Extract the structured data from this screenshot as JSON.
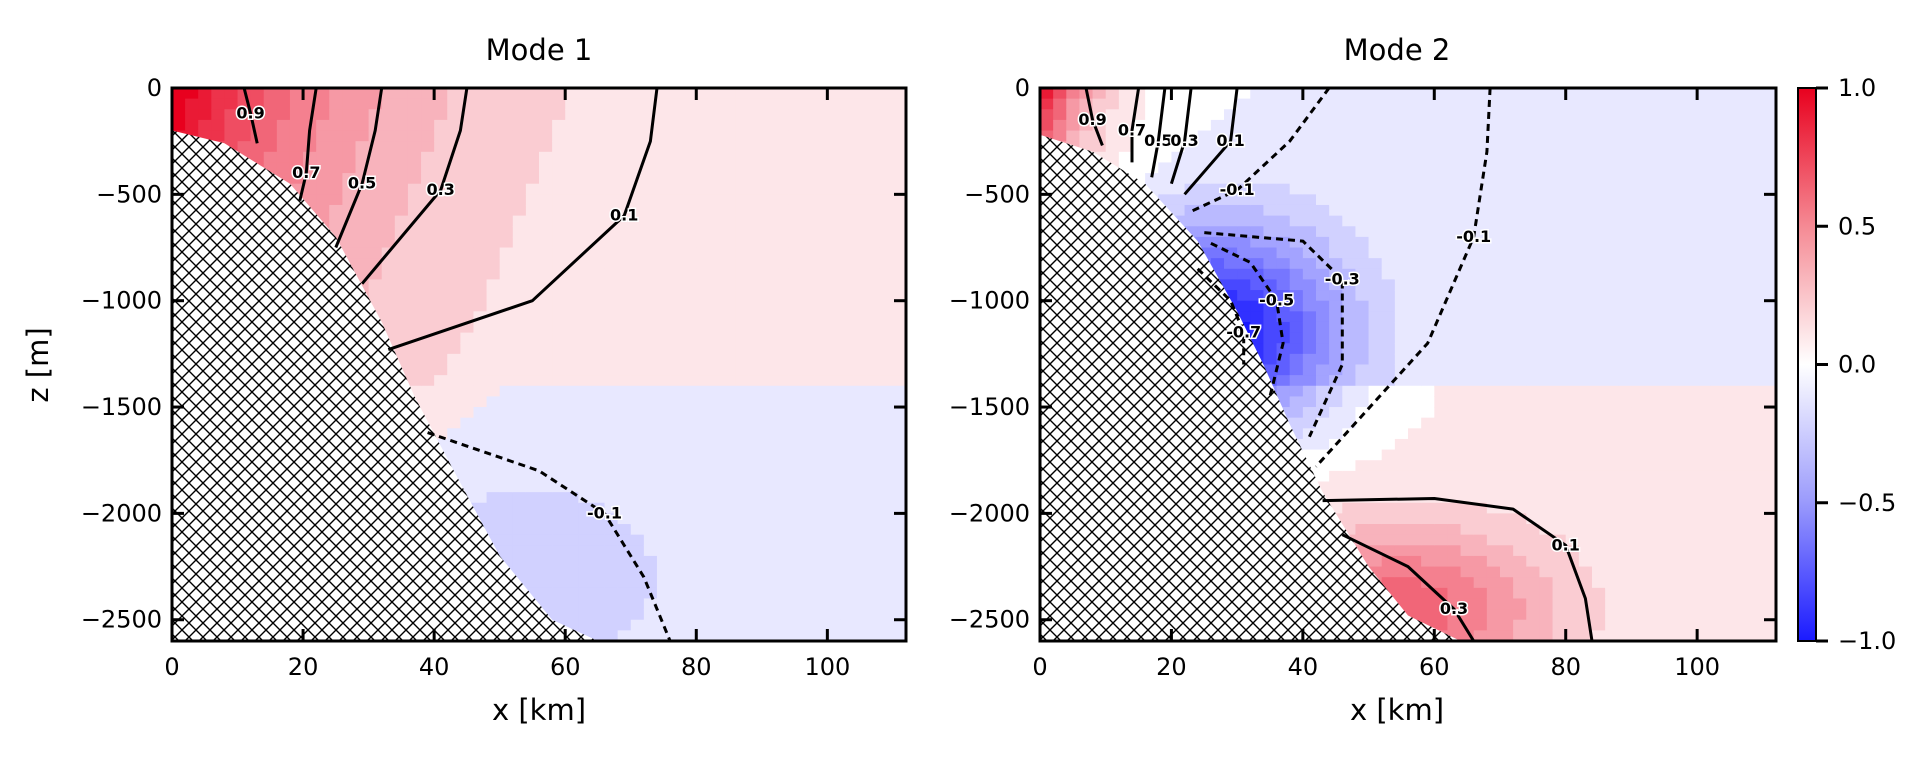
{
  "chart_data": [
    {
      "type": "heatmap",
      "title": "Mode 1",
      "xlabel": "x [km]",
      "ylabel": "z [m]",
      "xlim": [
        0,
        112
      ],
      "ylim": [
        -2600,
        0
      ],
      "x_ticks": [
        "0",
        "20",
        "40",
        "60",
        "80",
        "100"
      ],
      "y_ticks": [
        "0",
        "−500",
        "−1000",
        "−1500",
        "−2000",
        "−2500"
      ],
      "y_tick_values": [
        0,
        -500,
        -1000,
        -1500,
        -2000,
        -2500
      ],
      "x_tick_values": [
        0,
        20,
        40,
        60,
        80,
        100
      ],
      "contours": [
        {
          "level": 0.9,
          "label": "0.9",
          "style": "solid",
          "points": [
            [
              11,
              0
            ],
            [
              12,
              -120
            ],
            [
              13,
              -260
            ]
          ]
        },
        {
          "level": 0.7,
          "label": "0.7",
          "style": "solid",
          "points": [
            [
              22,
              0
            ],
            [
              21,
              -200
            ],
            [
              20.5,
              -400
            ],
            [
              19.5,
              -530
            ]
          ]
        },
        {
          "level": 0.5,
          "label": "0.5",
          "style": "solid",
          "points": [
            [
              32,
              0
            ],
            [
              31,
              -200
            ],
            [
              29,
              -450
            ],
            [
              25,
              -750
            ]
          ]
        },
        {
          "level": 0.3,
          "label": "0.3",
          "style": "solid",
          "points": [
            [
              45,
              0
            ],
            [
              44,
              -200
            ],
            [
              41,
              -480
            ],
            [
              29,
              -920
            ]
          ]
        },
        {
          "level": 0.1,
          "label": "0.1",
          "style": "solid",
          "points": [
            [
              74,
              0
            ],
            [
              73,
              -250
            ],
            [
              69,
              -600
            ],
            [
              55,
              -1000
            ],
            [
              33,
              -1230
            ]
          ]
        },
        {
          "level": -0.1,
          "label": "-0.1",
          "style": "dashed",
          "points": [
            [
              39,
              -1620
            ],
            [
              56,
              -1800
            ],
            [
              66,
              -2000
            ],
            [
              72,
              -2300
            ],
            [
              76,
              -2600
            ]
          ]
        }
      ],
      "bathymetry": [
        [
          0,
          -200
        ],
        [
          8,
          -260
        ],
        [
          18,
          -450
        ],
        [
          25,
          -700
        ],
        [
          32,
          -1100
        ],
        [
          37,
          -1450
        ],
        [
          43,
          -1800
        ],
        [
          50,
          -2200
        ],
        [
          58,
          -2500
        ],
        [
          65,
          -2600
        ]
      ]
    },
    {
      "type": "heatmap",
      "title": "Mode 2",
      "xlabel": "x [km]",
      "ylabel": "",
      "xlim": [
        0,
        112
      ],
      "ylim": [
        -2600,
        0
      ],
      "x_ticks": [
        "0",
        "20",
        "40",
        "60",
        "80",
        "100"
      ],
      "y_ticks": [
        "0",
        "−500",
        "−1000",
        "−1500",
        "−2000",
        "−2500"
      ],
      "y_tick_values": [
        0,
        -500,
        -1000,
        -1500,
        -2000,
        -2500
      ],
      "x_tick_values": [
        0,
        20,
        40,
        60,
        80,
        100
      ],
      "contours": [
        {
          "level": 0.9,
          "label": "0.9",
          "style": "solid",
          "points": [
            [
              7,
              0
            ],
            [
              8,
              -150
            ],
            [
              9.5,
              -270
            ]
          ]
        },
        {
          "level": 0.7,
          "label": "0.7",
          "style": "solid",
          "points": [
            [
              15,
              0
            ],
            [
              14,
              -200
            ],
            [
              14,
              -350
            ]
          ]
        },
        {
          "level": 0.5,
          "label": "0.5",
          "style": "solid",
          "points": [
            [
              19,
              0
            ],
            [
              18,
              -250
            ],
            [
              17,
              -420
            ]
          ]
        },
        {
          "level": 0.3,
          "label": "0.3",
          "style": "solid",
          "points": [
            [
              23,
              0
            ],
            [
              22,
              -250
            ],
            [
              20,
              -450
            ]
          ]
        },
        {
          "level": 0.1,
          "label": "0.1",
          "style": "solid",
          "points": [
            [
              30,
              0
            ],
            [
              29,
              -250
            ],
            [
              22,
              -500
            ]
          ]
        },
        {
          "level": -0.1,
          "label": "-0.1",
          "style": "dashed",
          "points": [
            [
              44,
              0
            ],
            [
              38,
              -250
            ],
            [
              30,
              -480
            ],
            [
              23,
              -580
            ]
          ]
        },
        {
          "level": -0.1,
          "label": "-0.1",
          "style": "dashed",
          "points": [
            [
              68.5,
              0
            ],
            [
              68,
              -300
            ],
            [
              66,
              -700
            ],
            [
              59,
              -1200
            ],
            [
              42,
              -1780
            ]
          ]
        },
        {
          "level": -0.3,
          "label": "-0.3",
          "style": "dashed",
          "points": [
            [
              25,
              -680
            ],
            [
              40,
              -720
            ],
            [
              46,
              -900
            ],
            [
              46,
              -1300
            ],
            [
              41,
              -1640
            ]
          ]
        },
        {
          "level": -0.5,
          "label": "-0.5",
          "style": "dashed",
          "points": [
            [
              26,
              -730
            ],
            [
              32,
              -820
            ],
            [
              36,
              -1000
            ],
            [
              37,
              -1200
            ],
            [
              35,
              -1450
            ]
          ]
        },
        {
          "level": -0.7,
          "label": "-0.7",
          "style": "dashed",
          "points": [
            [
              24,
              -850
            ],
            [
              29,
              -1000
            ],
            [
              31,
              -1150
            ],
            [
              31,
              -1300
            ]
          ]
        },
        {
          "level": 0.1,
          "label": "0.1",
          "style": "solid",
          "points": [
            [
              43,
              -1940
            ],
            [
              60,
              -1930
            ],
            [
              72,
              -1980
            ],
            [
              80,
              -2150
            ],
            [
              83,
              -2400
            ],
            [
              84,
              -2600
            ]
          ]
        },
        {
          "level": 0.3,
          "label": "0.3",
          "style": "solid",
          "points": [
            [
              46,
              -2100
            ],
            [
              56,
              -2250
            ],
            [
              63,
              -2450
            ],
            [
              66,
              -2600
            ]
          ]
        }
      ],
      "bathymetry": [
        [
          0,
          -220
        ],
        [
          8,
          -300
        ],
        [
          16,
          -450
        ],
        [
          24,
          -720
        ],
        [
          30,
          -1050
        ],
        [
          34,
          -1300
        ],
        [
          38,
          -1580
        ],
        [
          43,
          -1900
        ],
        [
          50,
          -2250
        ],
        [
          56,
          -2480
        ],
        [
          64,
          -2600
        ]
      ]
    }
  ],
  "colorbar": {
    "range": [
      -1.0,
      1.0
    ],
    "tick_labels": [
      "1.0",
      "0.5",
      "0.0",
      "−0.5",
      "−1.0"
    ],
    "tick_values": [
      1.0,
      0.5,
      0.0,
      -0.5,
      -1.0
    ],
    "colors": {
      "positive": "#e8001e",
      "zero": "#ffffff",
      "negative": "#1a1aff"
    }
  },
  "colors": {
    "contour": "#000000",
    "hatch": "#000000",
    "axes": "#000000"
  }
}
